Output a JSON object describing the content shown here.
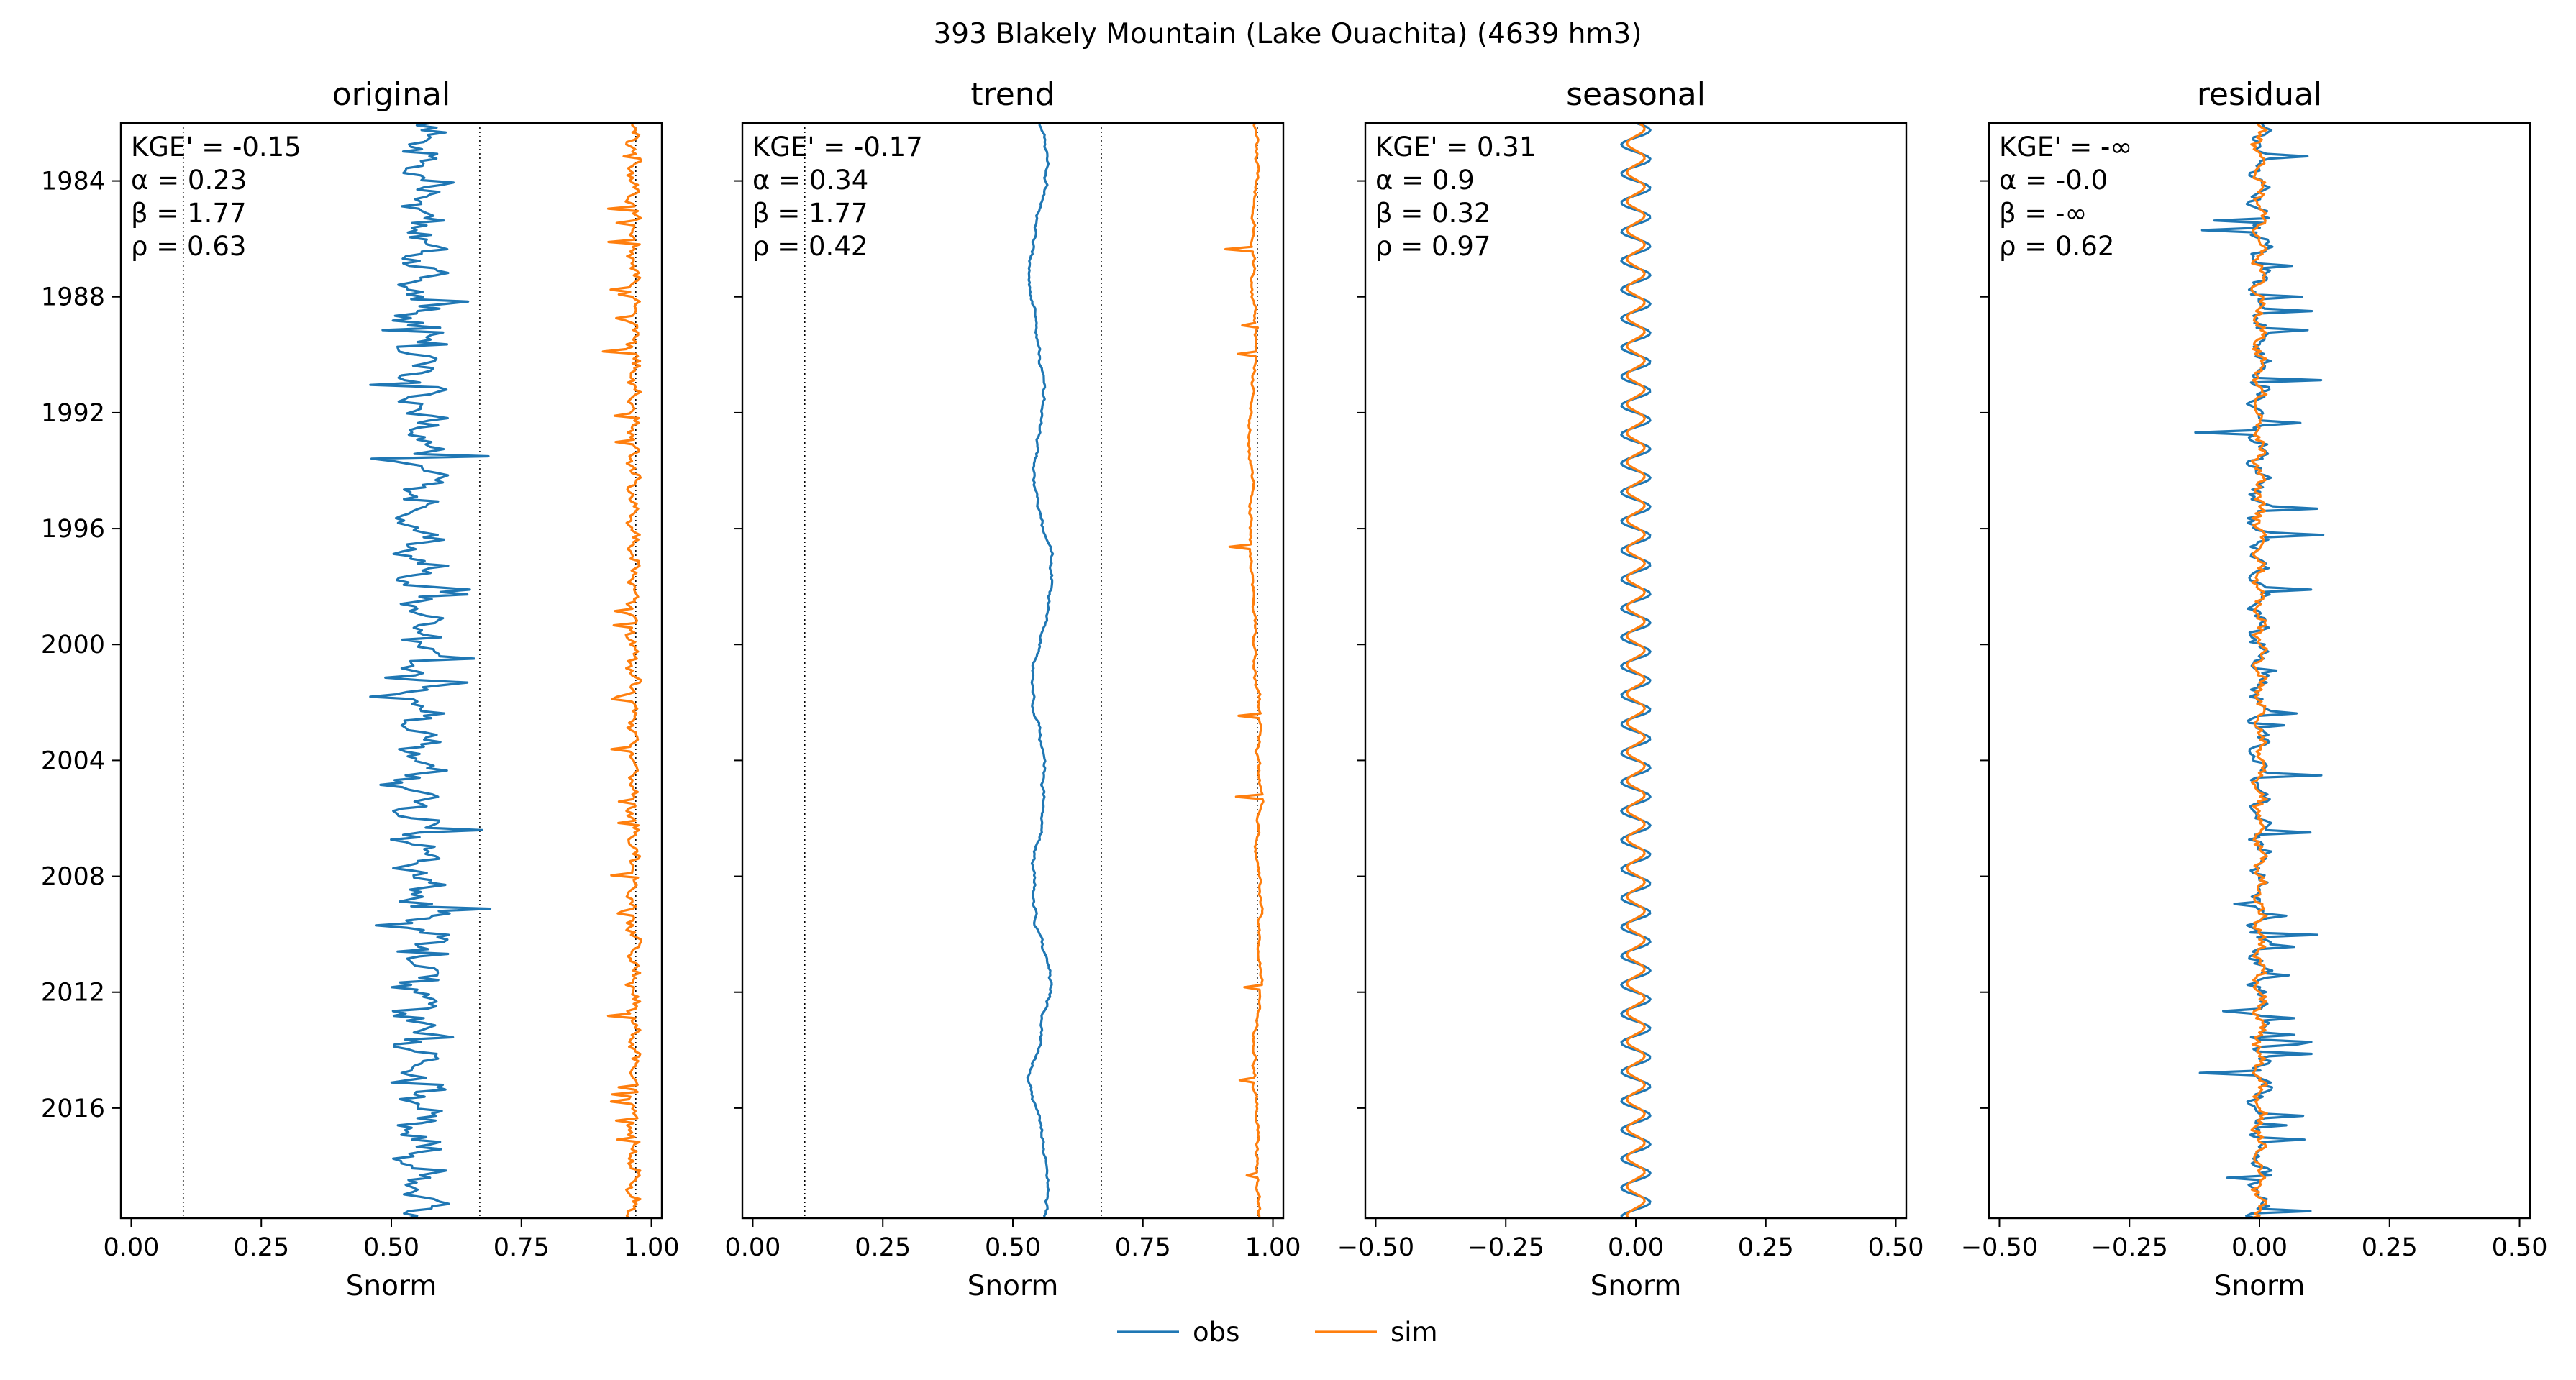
{
  "figure": {
    "suptitle": "393  Blakely Mountain (Lake Ouachita) (4639 hm3)"
  },
  "legend": {
    "placement": "bottom-center",
    "entries": [
      {
        "label": "obs",
        "color": "#1f77b4"
      },
      {
        "label": "sim",
        "color": "#ff7f0e"
      }
    ]
  },
  "chart_data": [
    {
      "type": "line",
      "title": "original",
      "xlabel": "Snorm",
      "xlim": [
        -0.02,
        1.02
      ],
      "ylim": [
        1982.0,
        2019.8
      ],
      "y_axis": "year",
      "y_ticks": [
        "1984",
        "1988",
        "1992",
        "1996",
        "2000",
        "2004",
        "2008",
        "2012",
        "2016"
      ],
      "x_ticks": [
        "0.00",
        "0.25",
        "0.50",
        "0.75",
        "1.00"
      ],
      "reference_lines_x": [
        0.1,
        0.67,
        0.97
      ],
      "stats": [
        "KGE' = -0.15",
        "α = 0.23",
        "β = 1.77",
        "ρ = 0.63"
      ],
      "series": [
        {
          "name": "obs",
          "color": "#1f77b4",
          "center": 0.555,
          "amplitude": 0.045,
          "spikes": 0.11
        },
        {
          "name": "sim",
          "color": "#ff7f0e",
          "center": 0.965,
          "amplitude": 0.012,
          "dips": 0.05
        }
      ]
    },
    {
      "type": "line",
      "title": "trend",
      "xlabel": "Snorm",
      "xlim": [
        -0.02,
        1.02
      ],
      "ylim": [
        1982.0,
        2019.8
      ],
      "y_axis": "year",
      "y_ticks": [
        "1984",
        "1988",
        "1992",
        "1996",
        "2000",
        "2004",
        "2008",
        "2012",
        "2016"
      ],
      "x_ticks": [
        "0.00",
        "0.25",
        "0.50",
        "0.75",
        "1.00"
      ],
      "reference_lines_x": [
        0.1,
        0.67,
        0.97
      ],
      "stats": [
        "KGE' = -0.17",
        "α = 0.34",
        "β = 1.77",
        "ρ = 0.42"
      ],
      "series": [
        {
          "name": "obs",
          "color": "#1f77b4",
          "center": 0.55,
          "amplitude": 0.03
        },
        {
          "name": "sim",
          "color": "#ff7f0e",
          "center": 0.965,
          "amplitude": 0.004,
          "dips": 0.04
        }
      ]
    },
    {
      "type": "line",
      "title": "seasonal",
      "xlabel": "Snorm",
      "xlim": [
        -0.52,
        0.52
      ],
      "ylim": [
        1982.0,
        2019.8
      ],
      "y_axis": "year",
      "y_ticks": [
        "1984",
        "1988",
        "1992",
        "1996",
        "2000",
        "2004",
        "2008",
        "2012",
        "2016"
      ],
      "x_ticks": [
        "−0.50",
        "−0.25",
        "0.00",
        "0.25",
        "0.50"
      ],
      "reference_lines_x": [],
      "stats": [
        "KGE' = 0.31",
        "α = 0.9",
        "β = 0.32",
        "ρ = 0.97"
      ],
      "series": [
        {
          "name": "obs",
          "color": "#1f77b4",
          "center": 0.0,
          "amplitude": 0.028
        },
        {
          "name": "sim",
          "color": "#ff7f0e",
          "center": 0.0,
          "amplitude": 0.017
        }
      ]
    },
    {
      "type": "line",
      "title": "residual",
      "xlabel": "Snorm",
      "xlim": [
        -0.52,
        0.52
      ],
      "ylim": [
        1982.0,
        2019.8
      ],
      "y_axis": "year",
      "y_ticks": [
        "1984",
        "1988",
        "1992",
        "1996",
        "2000",
        "2004",
        "2008",
        "2012",
        "2016"
      ],
      "x_ticks": [
        "−0.50",
        "−0.25",
        "0.00",
        "0.25",
        "0.50"
      ],
      "reference_lines_x": [],
      "stats": [
        "KGE' = -∞",
        "α = -0.0",
        "β = -∞",
        "ρ = 0.62"
      ],
      "series": [
        {
          "name": "obs",
          "color": "#1f77b4",
          "center": 0.0,
          "amplitude": 0.02,
          "spikes": 0.12
        },
        {
          "name": "sim",
          "color": "#ff7f0e",
          "center": 0.0,
          "amplitude": 0.012
        }
      ]
    }
  ]
}
